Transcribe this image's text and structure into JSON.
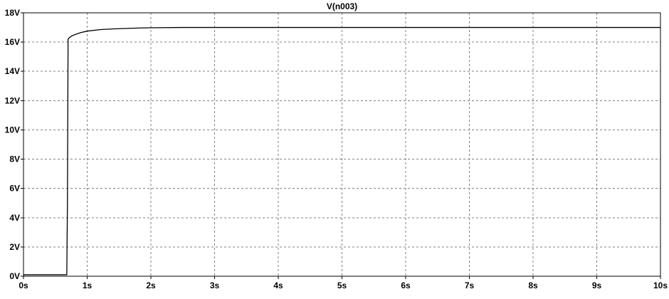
{
  "chart_data": {
    "type": "line",
    "title": "V(n003)",
    "xlabel": "",
    "ylabel": "",
    "xlim": [
      0,
      10
    ],
    "ylim": [
      0,
      18
    ],
    "grid": true,
    "x_ticks": [
      0,
      1,
      2,
      3,
      4,
      5,
      6,
      7,
      8,
      9,
      10
    ],
    "x_tick_labels": [
      "0s",
      "1s",
      "2s",
      "3s",
      "4s",
      "5s",
      "6s",
      "7s",
      "8s",
      "9s",
      "10s"
    ],
    "y_ticks": [
      0,
      2,
      4,
      6,
      8,
      10,
      12,
      14,
      16,
      18
    ],
    "y_tick_labels": [
      "0V",
      "2V",
      "4V",
      "6V",
      "8V",
      "10V",
      "12V",
      "14V",
      "16V",
      "18V"
    ],
    "series": [
      {
        "name": "V(n003)",
        "color": "#000000",
        "x": [
          0,
          0.68,
          0.69,
          0.7,
          0.71,
          0.72,
          0.75,
          0.8,
          0.9,
          1.0,
          1.2,
          1.4,
          1.6,
          1.8,
          2.0,
          2.5,
          3,
          4,
          5,
          6,
          7,
          8,
          9,
          10
        ],
        "y": [
          0.1,
          0.1,
          5.0,
          16.2,
          16.25,
          16.3,
          16.4,
          16.5,
          16.65,
          16.75,
          16.85,
          16.9,
          16.93,
          16.96,
          16.98,
          17.0,
          17.0,
          17.0,
          17.0,
          17.0,
          17.0,
          17.0,
          17.0,
          17.0
        ]
      }
    ]
  }
}
